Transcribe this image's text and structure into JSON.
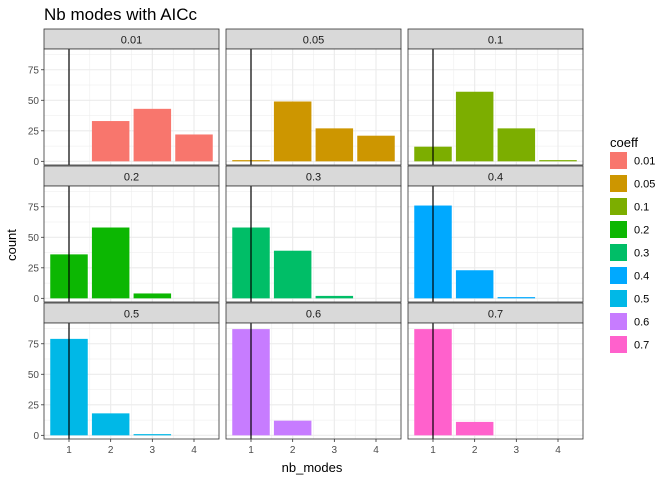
{
  "chart_data": {
    "type": "bar",
    "title": "Nb modes with AICc",
    "xlabel": "nb_modes",
    "ylabel": "count",
    "x_ticks": [
      "1",
      "2",
      "3",
      "4"
    ],
    "y_ticks": [
      "0",
      "25",
      "50",
      "75"
    ],
    "ylim": [
      -3,
      92
    ],
    "xlim": [
      0.4,
      4.6
    ],
    "vline_x": 1,
    "grid": true,
    "legend": {
      "title": "coeff",
      "position": "right",
      "entries": [
        {
          "label": "0.01",
          "color": "#F8766D"
        },
        {
          "label": "0.05",
          "color": "#CD9600"
        },
        {
          "label": "0.1",
          "color": "#7CAE00"
        },
        {
          "label": "0.2",
          "color": "#0CB702"
        },
        {
          "label": "0.3",
          "color": "#00BE67"
        },
        {
          "label": "0.4",
          "color": "#00A9FF"
        },
        {
          "label": "0.5",
          "color": "#00B8E7"
        },
        {
          "label": "0.6",
          "color": "#C77CFF"
        },
        {
          "label": "0.7",
          "color": "#FF61CC"
        }
      ]
    },
    "panels": [
      {
        "label": "0.01",
        "color": "#F8766D",
        "values": [
          0,
          33,
          43,
          22
        ]
      },
      {
        "label": "0.05",
        "color": "#CD9600",
        "values": [
          1,
          49,
          27,
          21
        ]
      },
      {
        "label": "0.1",
        "color": "#7CAE00",
        "values": [
          12,
          57,
          27,
          1
        ]
      },
      {
        "label": "0.2",
        "color": "#0CB702",
        "values": [
          36,
          58,
          4,
          0
        ]
      },
      {
        "label": "0.3",
        "color": "#00BE67",
        "values": [
          58,
          39,
          2,
          0
        ]
      },
      {
        "label": "0.4",
        "color": "#00A9FF",
        "values": [
          76,
          23,
          1,
          0
        ]
      },
      {
        "label": "0.5",
        "color": "#00B8E7",
        "values": [
          79,
          18,
          1,
          0
        ]
      },
      {
        "label": "0.6",
        "color": "#C77CFF",
        "values": [
          87,
          12,
          0,
          0
        ]
      },
      {
        "label": "0.7",
        "color": "#FF61CC",
        "values": [
          87,
          11,
          0,
          0
        ]
      }
    ]
  }
}
